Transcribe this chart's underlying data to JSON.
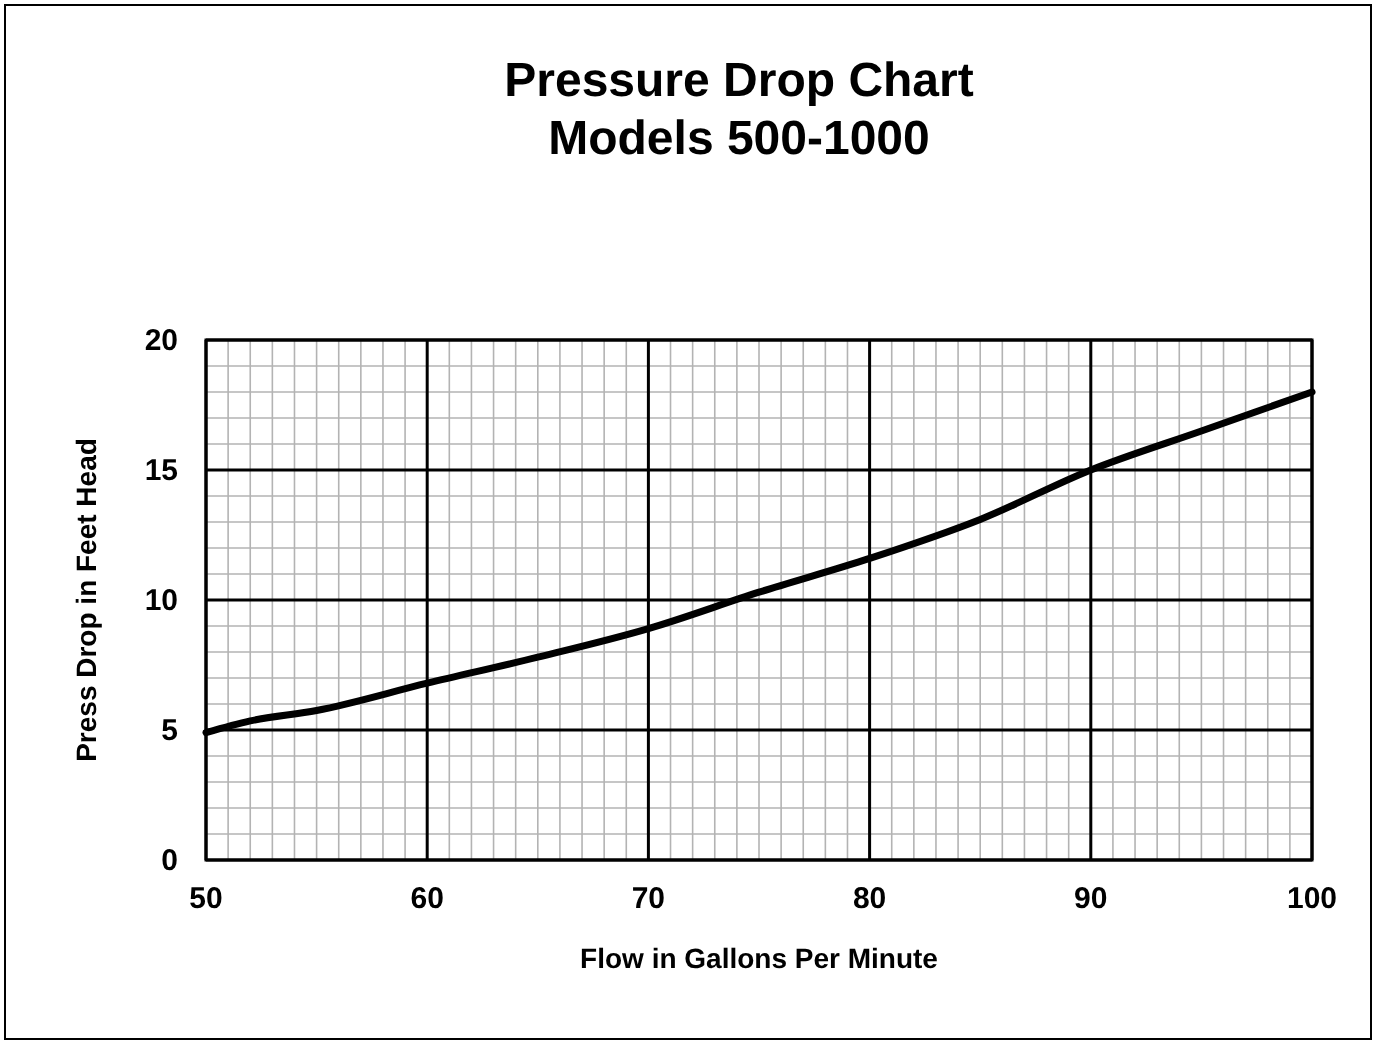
{
  "chart_data": {
    "type": "line",
    "title": "Pressure Drop Chart\nModels 500-1000",
    "xlabel": "Flow in Gallons Per Minute",
    "ylabel": "Press Drop in Feet Head",
    "x": [
      50,
      52,
      55,
      60,
      65,
      70,
      75,
      80,
      85,
      90,
      95,
      100
    ],
    "series": [
      {
        "color": "#000000",
        "values": [
          4.9,
          5.35,
          5.75,
          6.8,
          7.8,
          8.9,
          10.3,
          11.6,
          13.1,
          15.0,
          16.5,
          18.0
        ]
      }
    ],
    "xlim": [
      50,
      100
    ],
    "xticks": [
      50,
      60,
      70,
      80,
      90,
      100
    ],
    "ylim": [
      0,
      20
    ],
    "yticks": [
      0,
      5,
      10,
      15,
      20
    ],
    "grid": true,
    "marker": "none",
    "line_style": "solid"
  }
}
